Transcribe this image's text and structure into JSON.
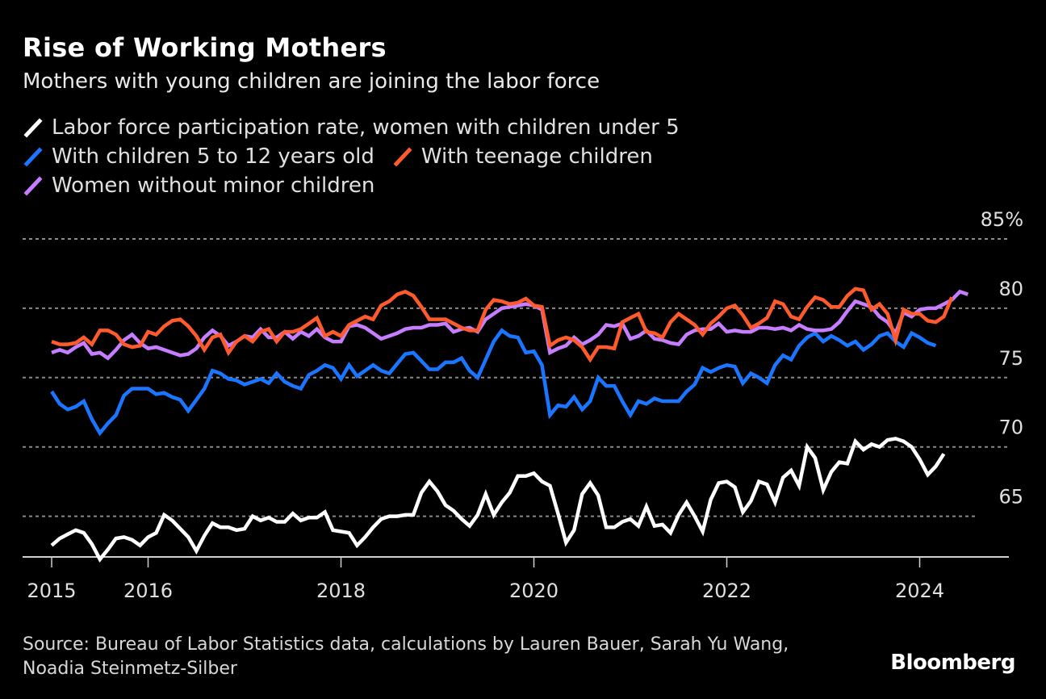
{
  "header": {
    "title": "Rise of Working Mothers",
    "subtitle": "Mothers with young children are joining the labor force"
  },
  "footer": {
    "source": "Source: Bureau of Labor Statistics data, calculations by Lauren Bauer, Sarah Yu Wang, Noadia Steinmetz-Silber",
    "brand": "Bloomberg"
  },
  "chart_data": {
    "type": "line",
    "title": "Rise of Working Mothers",
    "subtitle": "Mothers with young children are joining the labor force",
    "xlabel": "",
    "ylabel": "",
    "x_start": "2015-01",
    "x_frequency": "monthly",
    "x_ticks": [
      "2015",
      "2016",
      "2018",
      "2020",
      "2022",
      "2024"
    ],
    "y_ticks": [
      "85%",
      "80",
      "75",
      "70",
      "65"
    ],
    "ylim": [
      62,
      85
    ],
    "grid": true,
    "legend_position": "top-left",
    "series": [
      {
        "name": "Labor force participation rate, women with children under 5",
        "color": "#ffffff",
        "values": [
          62.9,
          63.4,
          63.7,
          64.0,
          63.8,
          63.0,
          61.9,
          62.6,
          63.4,
          63.5,
          63.3,
          62.9,
          63.5,
          63.8,
          65.1,
          64.7,
          64.1,
          63.5,
          62.5,
          63.6,
          64.5,
          64.2,
          64.2,
          64.0,
          64.1,
          65.0,
          64.7,
          64.9,
          64.6,
          64.6,
          65.2,
          64.7,
          64.9,
          64.9,
          65.3,
          64.0,
          63.9,
          63.8,
          62.9,
          63.5,
          64.2,
          64.8,
          65.0,
          65.0,
          65.1,
          65.1,
          66.7,
          67.5,
          66.8,
          65.8,
          65.4,
          64.8,
          64.3,
          65.1,
          66.6,
          65.1,
          66.0,
          66.7,
          67.9,
          67.9,
          68.1,
          67.5,
          67.2,
          65.2,
          63.1,
          64.0,
          66.6,
          67.4,
          66.5,
          64.2,
          64.2,
          64.6,
          64.8,
          64.3,
          65.7,
          64.3,
          64.4,
          63.8,
          65.1,
          66.0,
          65.0,
          63.9,
          66.2,
          67.4,
          67.5,
          67.1,
          65.3,
          66.1,
          67.5,
          67.3,
          66.0,
          67.8,
          68.3,
          67.2,
          70.0,
          69.2,
          66.9,
          68.2,
          68.9,
          68.8,
          70.4,
          69.8,
          70.2,
          70.0,
          70.5,
          70.6,
          70.4,
          70.0,
          69.1,
          68.0,
          68.6,
          69.5
        ]
      },
      {
        "name": "With children 5 to 12 years old",
        "color": "#1a75ff",
        "values": [
          74.0,
          73.1,
          72.7,
          72.9,
          73.3,
          72.0,
          71.0,
          71.7,
          72.3,
          73.7,
          74.2,
          74.2,
          74.2,
          73.8,
          73.9,
          73.6,
          73.4,
          72.6,
          73.4,
          74.2,
          75.5,
          75.3,
          74.9,
          74.8,
          74.5,
          74.7,
          74.9,
          74.6,
          75.3,
          74.7,
          74.4,
          74.2,
          75.2,
          75.5,
          75.9,
          75.7,
          74.9,
          75.9,
          75.1,
          75.5,
          75.9,
          75.5,
          75.3,
          76.0,
          76.7,
          76.8,
          76.2,
          75.6,
          75.6,
          76.1,
          76.1,
          76.4,
          75.5,
          75.0,
          76.3,
          77.6,
          78.4,
          78.0,
          77.9,
          76.8,
          76.9,
          75.9,
          72.3,
          73.0,
          72.9,
          73.6,
          72.7,
          73.3,
          75.0,
          74.4,
          74.4,
          73.3,
          72.3,
          73.3,
          73.1,
          73.5,
          73.3,
          73.3,
          73.3,
          74.0,
          74.5,
          75.7,
          75.4,
          75.7,
          75.9,
          75.8,
          74.6,
          75.3,
          75.0,
          74.6,
          75.9,
          76.6,
          76.3,
          77.3,
          77.9,
          78.2,
          77.6,
          78.0,
          77.7,
          77.3,
          77.6,
          77.0,
          77.4,
          78.0,
          78.2,
          77.6,
          77.2,
          78.2,
          77.9,
          77.5,
          77.3
        ]
      },
      {
        "name": "With teenage children",
        "color": "#ff5a2d",
        "values": [
          77.6,
          77.4,
          77.4,
          77.5,
          77.9,
          77.4,
          78.4,
          78.4,
          78.1,
          77.4,
          77.2,
          77.3,
          78.3,
          78.1,
          78.7,
          79.1,
          79.2,
          78.7,
          78.0,
          77.0,
          77.9,
          78.1,
          76.8,
          77.6,
          78.0,
          77.6,
          78.3,
          78.5,
          77.6,
          78.3,
          78.3,
          78.5,
          78.9,
          79.3,
          78.0,
          78.3,
          78.0,
          78.8,
          79.1,
          79.4,
          79.2,
          80.2,
          80.5,
          81.0,
          81.2,
          80.9,
          80.1,
          79.2,
          79.2,
          79.2,
          78.9,
          78.6,
          78.4,
          78.4,
          79.9,
          80.6,
          80.5,
          80.3,
          80.4,
          80.7,
          80.2,
          80.1,
          77.3,
          77.7,
          77.9,
          77.7,
          77.2,
          76.3,
          77.2,
          77.2,
          77.1,
          79.0,
          79.3,
          79.6,
          78.3,
          78.2,
          77.9,
          79.0,
          79.6,
          79.2,
          78.8,
          78.1,
          78.9,
          79.4,
          80.0,
          80.2,
          79.5,
          78.6,
          78.9,
          79.3,
          80.5,
          80.3,
          79.4,
          79.2,
          80.1,
          80.8,
          80.6,
          80.1,
          80.1,
          80.9,
          81.4,
          81.3,
          79.9,
          80.3,
          79.6,
          77.7,
          79.9,
          79.6,
          79.6,
          79.1,
          79.0,
          79.4,
          80.8
        ]
      },
      {
        "name": "Women without minor children",
        "color": "#c77dff",
        "values": [
          76.8,
          77.0,
          76.8,
          77.2,
          77.5,
          76.7,
          76.8,
          76.4,
          77.0,
          77.7,
          78.1,
          77.5,
          77.1,
          77.2,
          77.0,
          76.8,
          76.6,
          76.7,
          77.1,
          77.9,
          78.4,
          78.0,
          77.3,
          77.6,
          78.0,
          77.9,
          78.5,
          77.9,
          77.9,
          78.3,
          77.8,
          78.3,
          78.0,
          78.5,
          77.9,
          77.6,
          77.6,
          78.7,
          78.8,
          78.6,
          78.2,
          77.8,
          78.0,
          78.2,
          78.5,
          78.6,
          78.6,
          78.8,
          78.8,
          78.9,
          78.3,
          78.5,
          78.6,
          78.3,
          79.2,
          79.6,
          80.0,
          80.1,
          80.2,
          80.3,
          80.2,
          79.9,
          76.8,
          77.1,
          77.3,
          77.9,
          77.4,
          77.7,
          78.1,
          78.8,
          78.7,
          78.9,
          77.8,
          78.0,
          78.4,
          77.8,
          77.7,
          77.5,
          77.4,
          78.1,
          78.4,
          78.5,
          78.5,
          78.9,
          78.3,
          78.4,
          78.3,
          78.3,
          78.6,
          78.6,
          78.5,
          78.6,
          78.4,
          78.8,
          78.5,
          78.4,
          78.4,
          78.5,
          79.0,
          79.8,
          80.5,
          80.3,
          80.1,
          79.4,
          79.0,
          78.2,
          79.7,
          79.4,
          79.9,
          80.0,
          80.0,
          80.3,
          80.6,
          81.2,
          81.0
        ]
      }
    ]
  }
}
